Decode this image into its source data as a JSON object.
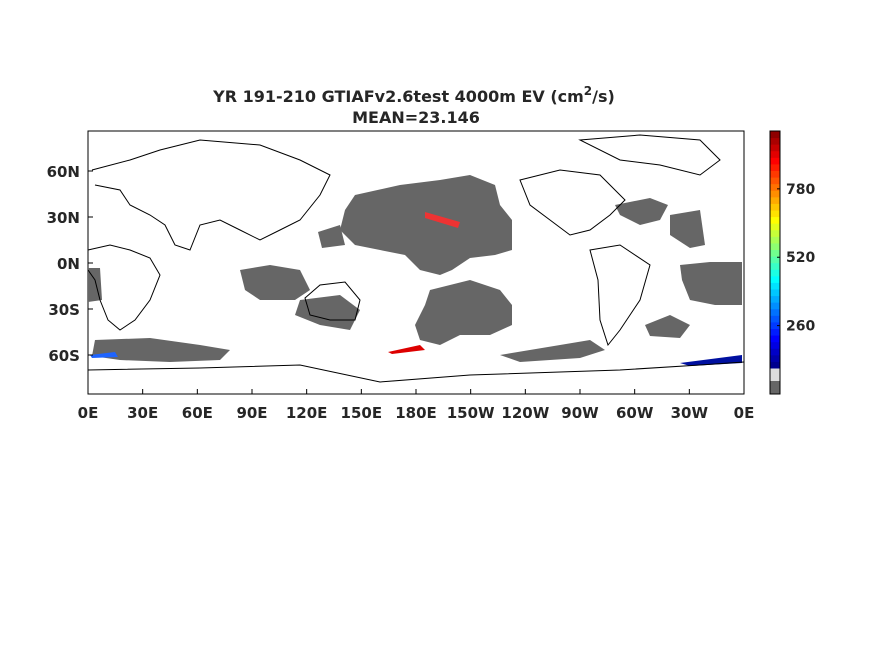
{
  "map": {
    "title": {
      "main": "YR 191-210 GTIAFv2.6test 4000m EV (cm",
      "superscript": "2",
      "unit_end": "/s)",
      "subtitle": "MEAN=23.146"
    },
    "x_labels": [
      "0E",
      "30E",
      "60E",
      "90E",
      "120E",
      "150E",
      "180E",
      "150W",
      "120W",
      "90W",
      "60W",
      "30W",
      "0E"
    ],
    "y_labels": [
      "60N",
      "30N",
      "0N",
      "30S",
      "60S"
    ],
    "colorbar": {
      "clim": [
        0,
        1000
      ],
      "ticks": [
        260,
        520,
        780
      ]
    }
  }
}
